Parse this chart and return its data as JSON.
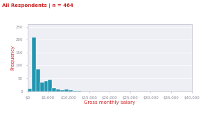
{
  "title": "All Respondents | n = 464",
  "title_color": "#cc2222",
  "xlabel": "Gross monthly salary",
  "xlabel_color": "#cc2222",
  "ylabel": "Frequency",
  "ylabel_color": "#cc2222",
  "bar_color": "#2196b0",
  "bar_edge_color": "#ffffff",
  "background_color": "#ffffff",
  "plot_bg_color": "#eeeef5",
  "xlim": [
    0,
    40000
  ],
  "ylim": [
    0,
    260
  ],
  "xticks": [
    0,
    5000,
    10000,
    15000,
    20000,
    25000,
    30000,
    35000,
    40000
  ],
  "xtick_labels": [
    "$0",
    "$5,000",
    "$10,000",
    "$15,000",
    "$20,000",
    "$25,000",
    "$30,000",
    "$35,000",
    "$40,000"
  ],
  "yticks": [
    0,
    50,
    100,
    150,
    200,
    250
  ],
  "bin_edges": [
    0,
    1000,
    2000,
    3000,
    4000,
    5000,
    6000,
    7000,
    8000,
    9000,
    10000,
    11000,
    12000,
    13000,
    14000,
    15000,
    16000,
    17000,
    18000,
    19000,
    20000,
    21000,
    22000,
    23000,
    24000,
    25000,
    26000,
    27000,
    28000,
    29000,
    30000,
    31000,
    32000,
    33000,
    34000,
    35000,
    36000,
    37000,
    38000,
    39000,
    40000
  ],
  "bar_heights": [
    10,
    210,
    85,
    35,
    40,
    45,
    13,
    7,
    5,
    6,
    4,
    3,
    2,
    0,
    0,
    0,
    0,
    0,
    0,
    0,
    0,
    0,
    0,
    0,
    0,
    0,
    0,
    0,
    0,
    0,
    0,
    0,
    0,
    0,
    0,
    0,
    0,
    0,
    0,
    0
  ],
  "grid_color": "#ffffff",
  "spine_color": "#bbbbcc",
  "tick_color": "#888899",
  "tick_fontsize": 4.0,
  "label_fontsize": 5.0,
  "title_fontsize": 5.0
}
